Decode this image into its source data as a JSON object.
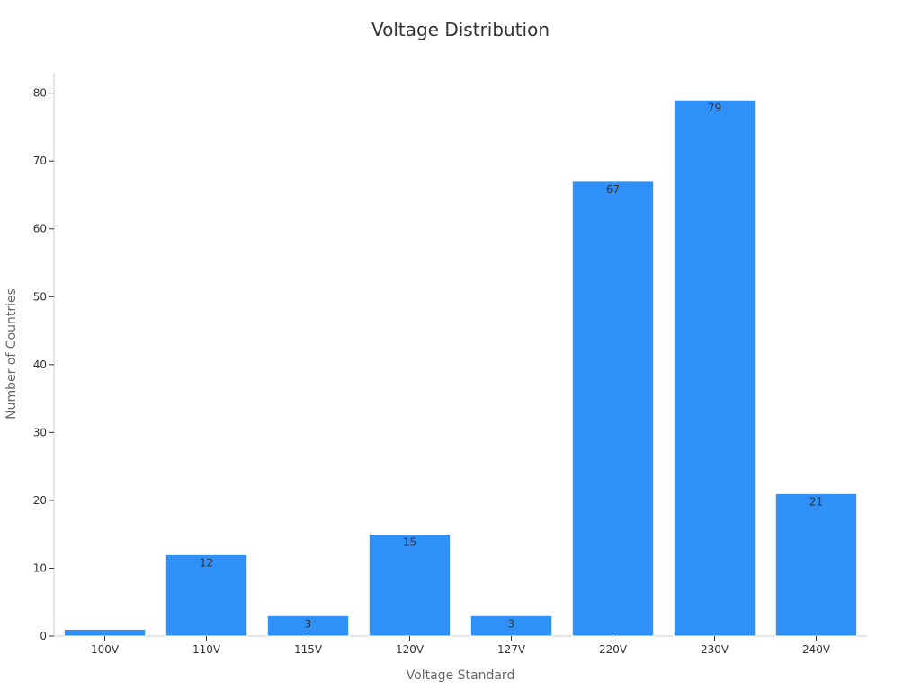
{
  "chart_data": {
    "type": "bar",
    "title": "Voltage Distribution",
    "xlabel": "Voltage Standard",
    "ylabel": "Number of Countries",
    "categories": [
      "100V",
      "110V",
      "115V",
      "120V",
      "127V",
      "220V",
      "230V",
      "240V"
    ],
    "values": [
      1,
      12,
      3,
      15,
      3,
      67,
      79,
      21
    ],
    "data_labels": [
      "",
      "12",
      "3",
      "15",
      "3",
      "67",
      "79",
      "21"
    ],
    "ylim": [
      0,
      83
    ],
    "yticks": [
      0,
      10,
      20,
      30,
      40,
      50,
      60,
      70,
      80
    ],
    "bar_color": "#2f91f8",
    "grid": false,
    "legend": "none"
  }
}
